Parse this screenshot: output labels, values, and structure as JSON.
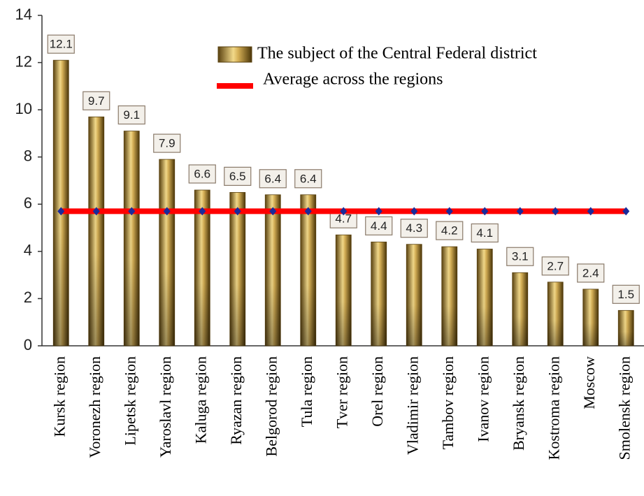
{
  "chart_data": {
    "type": "bar",
    "categories": [
      "Kursk region",
      "Voronezh region",
      "Lipetsk region",
      "Yaroslavl region",
      "Kaluga region",
      "Ryazan region",
      "Belgorod region",
      "Tula region",
      "Tver region",
      "Orel region",
      "Vladimir region",
      "Tambov region",
      "Ivanov region",
      "Bryansk region",
      "Kostroma region",
      "Moscow",
      "Smolensk region"
    ],
    "series": [
      {
        "name": "The subject of the Central Federal district",
        "type": "bar",
        "color": "#c9a24a",
        "values": [
          12.1,
          9.7,
          9.1,
          7.9,
          6.6,
          6.5,
          6.4,
          6.4,
          4.7,
          4.4,
          4.3,
          4.2,
          4.1,
          3.1,
          2.7,
          2.4,
          1.5
        ]
      },
      {
        "name": "Average across the regions",
        "type": "line",
        "color": "#ff0000",
        "marker_color": "#1a2a9a",
        "values": [
          5.7,
          5.7,
          5.7,
          5.7,
          5.7,
          5.7,
          5.7,
          5.7,
          5.7,
          5.7,
          5.7,
          5.7,
          5.7,
          5.7,
          5.7,
          5.7,
          5.7
        ]
      }
    ],
    "ylim": [
      0,
      14
    ],
    "yticks": [
      0,
      2,
      4,
      6,
      8,
      10,
      12,
      14
    ],
    "grid": false,
    "data_labels": true
  }
}
